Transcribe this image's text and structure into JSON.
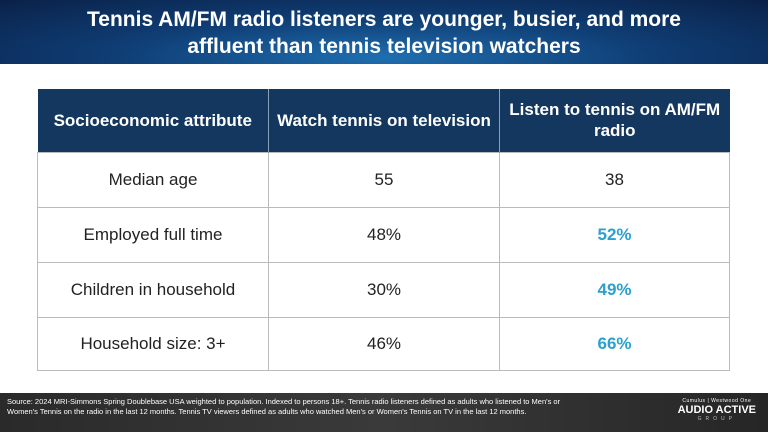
{
  "title": {
    "line1": "Tennis AM/FM radio listeners are younger, busier, and more",
    "line2": "affluent than tennis television watchers"
  },
  "table": {
    "headers": [
      "Socioeconomic attribute",
      "Watch tennis on television",
      "Listen to tennis on AM/FM radio"
    ],
    "rows": [
      [
        "Median age",
        "55",
        "38"
      ],
      [
        "Employed full time",
        "48%",
        "52%"
      ],
      [
        "Children in household",
        "30%",
        "49%"
      ],
      [
        "Household size: 3+",
        "46%",
        "66%"
      ]
    ]
  },
  "colors": {
    "header_bg": "#14375f",
    "accent": "#2b9fd0"
  },
  "footer": {
    "source": "Source: 2024 MRI-Simmons Spring Doublebase USA weighted to population. Indexed to persons 18+. Tennis radio listeners defined as adults who listened to Men's or Women's Tennis on the radio in the last 12 months. Tennis TV viewers defined as adults who watched Men's or Women's Tennis on TV in the last 12 months.",
    "logo_small": "Cumulus | Westwood One",
    "logo_big": "AUDIO ACTIVE",
    "logo_group": "GROUP"
  }
}
